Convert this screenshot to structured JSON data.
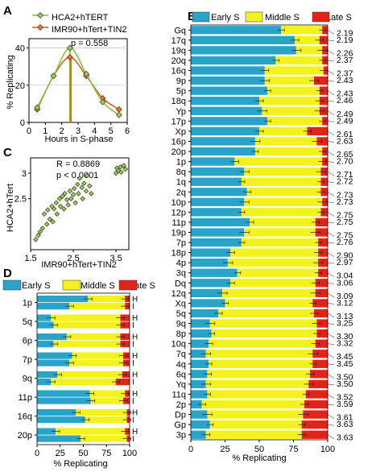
{
  "panel_labels": {
    "a": "A",
    "b": "B",
    "c": "C",
    "d": "D"
  },
  "colors": {
    "early": "#2aa3c8",
    "middle": "#f4f21c",
    "late": "#e2231a",
    "hca2_line": "#8ac241",
    "imr90_line": "#e25c1c",
    "hca2_marker": "#9acd50",
    "imr90_marker": "#e8761e"
  },
  "chart_data": [
    {
      "type": "line",
      "panel": "A",
      "series": [
        {
          "name": "HCA2+hTERT",
          "x": [
            0.5,
            1.5,
            2.5,
            3.5,
            4.5,
            5.5
          ],
          "values": [
            8,
            25,
            40,
            26,
            11,
            4
          ]
        },
        {
          "name": "IMR90+hTert+TIN2",
          "x": [
            0.5,
            1.5,
            2.5,
            3.5,
            4.5,
            5.5
          ],
          "values": [
            7,
            25,
            35,
            25,
            13,
            7
          ]
        }
      ],
      "annotation": "p = 0.558",
      "vlines": [
        2.5,
        2.55
      ],
      "xlabel": "Hours in S-phase",
      "ylabel": "% Replicating",
      "xlim": [
        0,
        6
      ],
      "ylim": [
        0,
        45
      ],
      "xticks": [
        "0",
        "1",
        "2",
        "3",
        "4",
        "5",
        "6"
      ],
      "yticks": [
        "0",
        "20",
        "40"
      ],
      "grid": "horizontal",
      "legend": "top"
    },
    {
      "type": "bar",
      "panel": "B",
      "orientation": "horizontal-stacked",
      "legend": [
        "Early S",
        "Middle S",
        "Late S"
      ],
      "categories": [
        "Gq",
        "17q",
        "19q",
        "20q",
        "16q",
        "9p",
        "5p",
        "18q",
        "Yp",
        "17p",
        "Xp",
        "16p",
        "20p",
        "1p",
        "8q",
        "1q",
        "2q",
        "10p",
        "12p",
        "11p",
        "19p",
        "7p",
        "18p",
        "4p",
        "3q",
        "Dq",
        "12q",
        "Xq",
        "5q",
        "9q",
        "8p",
        "10q",
        "7q",
        "4q",
        "6q",
        "Yq",
        "11q",
        "2p",
        "Dp",
        "Gp",
        "3p"
      ],
      "early": [
        66,
        76,
        77,
        62,
        54,
        54,
        56,
        50,
        52,
        56,
        50,
        47,
        47,
        32,
        39,
        37,
        41,
        39,
        37,
        43,
        39,
        37,
        29,
        27,
        34,
        29,
        23,
        25,
        20,
        14,
        15,
        13,
        11,
        13,
        12,
        11,
        12,
        8,
        12,
        14,
        11
      ],
      "middle": [
        30,
        18,
        19,
        34,
        43,
        36,
        38,
        44,
        42,
        40,
        35,
        45,
        49,
        64,
        56,
        58,
        54,
        57,
        58,
        48,
        52,
        56,
        64,
        66,
        59,
        62,
        68,
        64,
        70,
        78,
        77,
        78,
        78,
        76,
        75,
        75,
        72,
        75,
        70,
        67,
        70
      ],
      "late": [
        4,
        6,
        4,
        4,
        3,
        10,
        6,
        6,
        6,
        4,
        15,
        8,
        4,
        4,
        5,
        5,
        5,
        4,
        5,
        9,
        9,
        7,
        7,
        7,
        7,
        9,
        9,
        11,
        10,
        8,
        8,
        9,
        11,
        11,
        13,
        14,
        16,
        17,
        18,
        19,
        19
      ],
      "scores": [
        "2.19",
        "2.19",
        "2.26",
        "2.37",
        "2.37",
        "2.43",
        "2.43",
        "2.46",
        "2.49",
        "2.49",
        "2.61",
        "2.63",
        "2.65",
        "2.70",
        "2.71",
        "2.72",
        "2.73",
        "2.73",
        "2.75",
        "2.75",
        "2.75",
        "2.76",
        "2.90",
        "2.97",
        "3.04",
        "3.06",
        "3.09",
        "3.12",
        "3.13",
        "3.25",
        "3.30",
        "3.32",
        "3.45",
        "3.45",
        "3.50",
        "3.50",
        "3.52",
        "3.59",
        "3.61",
        "3.63",
        "3.63"
      ],
      "xlabel": "% Replicating",
      "xlim": [
        0,
        100
      ],
      "xticks": [
        "0",
        "25",
        "50",
        "75",
        "100"
      ]
    },
    {
      "type": "scatter",
      "panel": "C",
      "annotation_r": "R = 0.8869",
      "annotation_p": "p < 0.0001",
      "xlabel": "IMR90+hTert+TIN2",
      "ylabel": "HCA2+hTert",
      "xlim": [
        1.5,
        3.8
      ],
      "ylim": [
        1.5,
        3.3
      ],
      "xticks": [
        "1.5",
        "2.5",
        "3.5"
      ],
      "yticks": [
        "2.5",
        "3"
      ],
      "x": [
        1.62,
        1.68,
        1.72,
        1.78,
        1.82,
        1.88,
        1.9,
        1.95,
        2.0,
        2.02,
        2.05,
        2.1,
        2.12,
        2.18,
        2.2,
        2.25,
        2.28,
        2.3,
        2.35,
        2.38,
        2.42,
        2.45,
        2.5,
        2.52,
        2.55,
        2.6,
        2.62,
        2.65,
        2.7,
        2.72,
        2.75,
        2.8,
        2.82,
        2.88,
        2.92,
        3.5,
        3.52,
        3.55,
        3.6,
        3.62,
        3.68,
        3.72
      ],
      "values": [
        1.7,
        1.78,
        1.85,
        1.92,
        2.2,
        2.0,
        2.28,
        2.1,
        2.35,
        2.05,
        2.3,
        2.42,
        2.2,
        2.5,
        2.35,
        2.55,
        2.3,
        2.6,
        2.48,
        2.38,
        2.65,
        2.5,
        2.58,
        2.7,
        2.42,
        2.78,
        2.6,
        2.9,
        2.72,
        2.5,
        2.8,
        2.65,
        2.95,
        2.75,
        2.6,
        3.0,
        3.1,
        3.05,
        3.12,
        3.02,
        3.15,
        3.08
      ]
    },
    {
      "type": "bar",
      "panel": "D",
      "orientation": "horizontal-stacked",
      "legend": [
        "Early S",
        "Middle S",
        "Late S"
      ],
      "groups": [
        "1p",
        "5q",
        "6p",
        "7p",
        "9q",
        "11p",
        "16q",
        "20p"
      ],
      "pair_labels": [
        "H",
        "I"
      ],
      "early": [
        [
          55,
          35
        ],
        [
          15,
          18
        ],
        [
          32,
          18
        ],
        [
          38,
          35
        ],
        [
          22,
          15
        ],
        [
          57,
          58
        ],
        [
          42,
          52
        ],
        [
          20,
          47
        ]
      ],
      "middle": [
        [
          40,
          60
        ],
        [
          75,
          72
        ],
        [
          58,
          72
        ],
        [
          55,
          58
        ],
        [
          70,
          70
        ],
        [
          38,
          35
        ],
        [
          55,
          45
        ],
        [
          75,
          50
        ]
      ],
      "late": [
        [
          5,
          5
        ],
        [
          10,
          10
        ],
        [
          10,
          10
        ],
        [
          7,
          7
        ],
        [
          8,
          15
        ],
        [
          5,
          7
        ],
        [
          3,
          3
        ],
        [
          5,
          3
        ]
      ],
      "xlabel": "% Replicating",
      "xlim": [
        0,
        100
      ],
      "xticks": [
        "0",
        "25",
        "50",
        "75",
        "100"
      ]
    }
  ]
}
